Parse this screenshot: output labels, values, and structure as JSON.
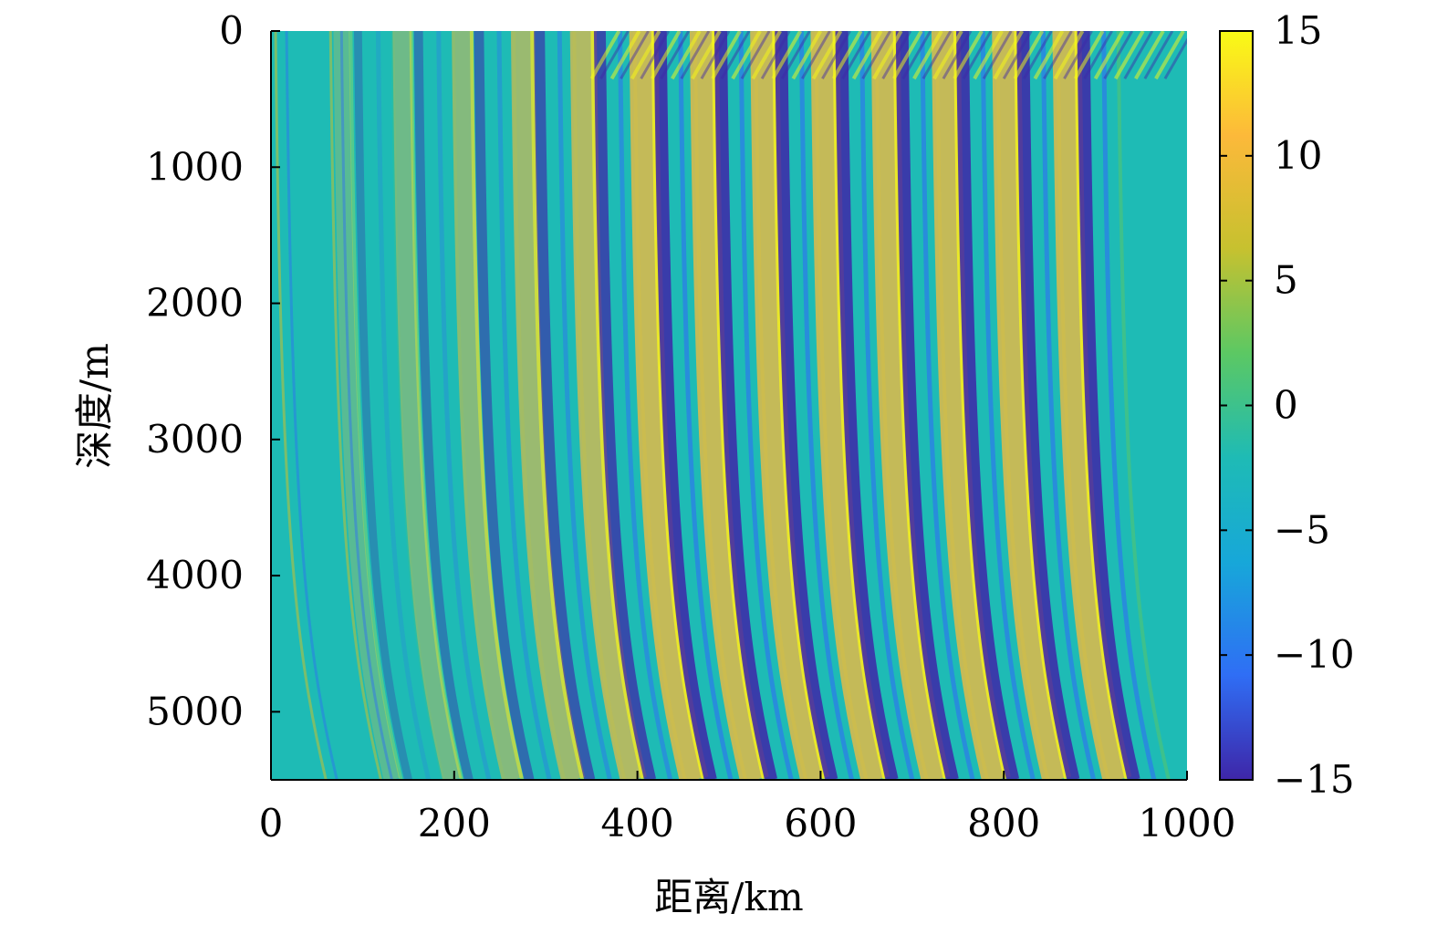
{
  "chart_data": {
    "type": "heatmap",
    "xlabel": "距离/km",
    "ylabel": "深度/m",
    "xlim": [
      0,
      1000
    ],
    "ylim": [
      0,
      5500
    ],
    "y_inverted": true,
    "x_ticks": [
      0,
      200,
      400,
      600,
      800,
      1000
    ],
    "y_ticks": [
      0,
      1000,
      2000,
      3000,
      4000,
      5000
    ],
    "colorbar": {
      "range": [
        -15,
        15
      ],
      "ticks": [
        15,
        10,
        5,
        0,
        -5,
        -10,
        -15
      ],
      "tick_labels": [
        "15",
        "10",
        "5",
        "0",
        "−5",
        "−10",
        "−15"
      ],
      "colormap": "parula",
      "colors": [
        "#3e26a8",
        "#2f6ef5",
        "#17a7d9",
        "#1ebbb5",
        "#5cc863",
        "#c7c12f",
        "#fcb93a",
        "#f9fb15"
      ]
    },
    "features": {
      "pattern": "convergence-zone acoustic field; recurring caustic arcs curving from the surface down to the bottom; strong positive (yellow) and negative (blue) bands near the bottom",
      "arc_period_km_surface": 63,
      "arc_period_km_bottom": 66,
      "first_arc_bottom_km": 150,
      "last_arc_bottom_km": 1000
    }
  }
}
